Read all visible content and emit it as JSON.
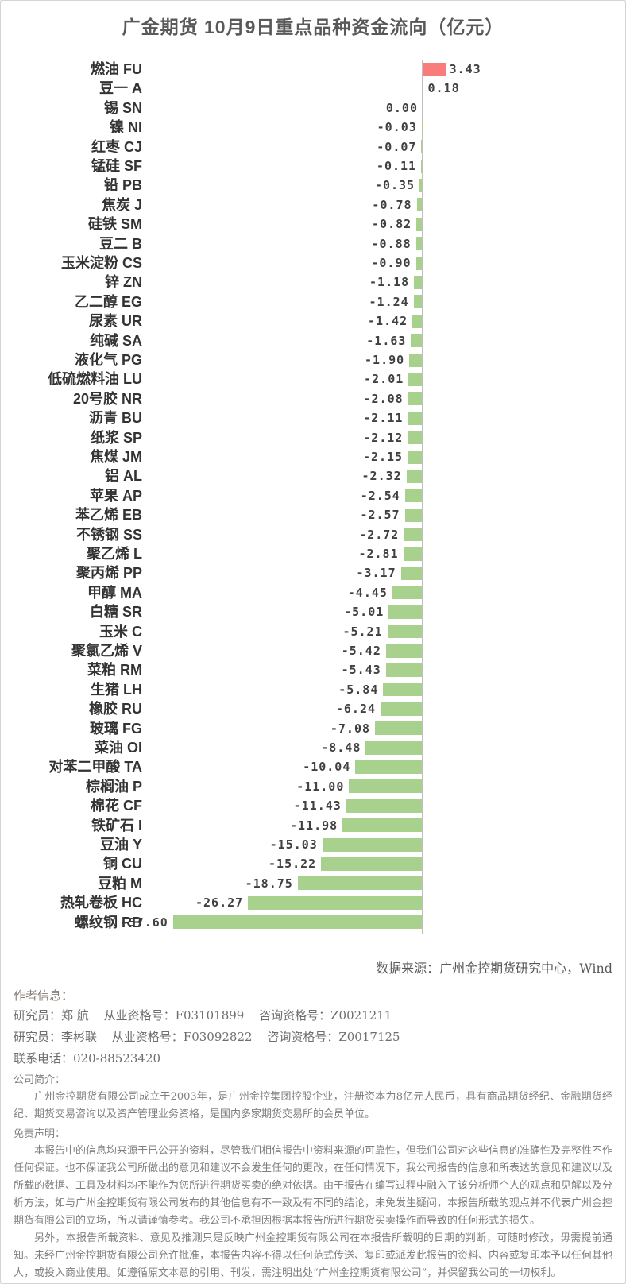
{
  "title": "广金期货 10月9日重点品种资金流向（亿元）",
  "chart_data": {
    "type": "bar",
    "orientation": "horizontal",
    "title": "广金期货 10月9日重点品种资金流向（亿元）",
    "unit": "亿元",
    "value_format": "2-decimals",
    "xlim": [
      -40,
      5
    ],
    "grid": false,
    "legend": "none",
    "positive_color": "#f87c7c",
    "negative_color": "#a9d18e",
    "axis_color": "#bfbfbf",
    "categories": [
      "燃油 FU",
      "豆一 A",
      "锡 SN",
      "镍 NI",
      "红枣 CJ",
      "锰硅 SF",
      "铅 PB",
      "焦炭 J",
      "硅铁 SM",
      "豆二 B",
      "玉米淀粉 CS",
      "锌 ZN",
      "乙二醇 EG",
      "尿素 UR",
      "纯碱 SA",
      "液化气 PG",
      "低硫燃料油 LU",
      "20号胶 NR",
      "沥青 BU",
      "纸浆 SP",
      "焦煤 JM",
      "铝 AL",
      "苹果 AP",
      "苯乙烯 EB",
      "不锈钢 SS",
      "聚乙烯 L",
      "聚丙烯 PP",
      "甲醇 MA",
      "白糖 SR",
      "玉米 C",
      "聚氯乙烯 V",
      "菜粕 RM",
      "生猪 LH",
      "橡胶 RU",
      "玻璃 FG",
      "菜油 OI",
      "对苯二甲酸 TA",
      "棕榈油 P",
      "棉花 CF",
      "铁矿石 I",
      "豆油 Y",
      "铜 CU",
      "豆粕 M",
      "热轧卷板 HC",
      "螺纹钢 RB"
    ],
    "values": [
      3.43,
      0.18,
      0.0,
      -0.03,
      -0.07,
      -0.11,
      -0.35,
      -0.78,
      -0.82,
      -0.88,
      -0.9,
      -1.18,
      -1.24,
      -1.42,
      -1.63,
      -1.9,
      -2.01,
      -2.08,
      -2.11,
      -2.12,
      -2.15,
      -2.32,
      -2.54,
      -2.57,
      -2.72,
      -2.81,
      -3.17,
      -4.45,
      -5.01,
      -5.21,
      -5.42,
      -5.43,
      -5.84,
      -6.24,
      -7.08,
      -8.48,
      -10.04,
      -11.0,
      -11.43,
      -11.98,
      -15.03,
      -15.22,
      -18.75,
      -26.27,
      -37.6
    ]
  },
  "footer": {
    "source": "数据来源：广州金控期货研究中心，Wind",
    "author_heading": "作者信息：",
    "researchers": [
      {
        "role": "研究员：郑 航",
        "practice": "从业资格号：F03101899",
        "consult": "咨询资格号：Z0021211"
      },
      {
        "role": "研究员：李彬联",
        "practice": "从业资格号：F03092822",
        "consult": "咨询资格号：Z0017125"
      }
    ],
    "phone": "联系电话：020-88523420",
    "company_heading": "公司简介：",
    "company_intro": "广州金控期货有限公司成立于2003年，是广州金控集团控股企业，注册资本为8亿元人民币，具有商品期货经纪、金融期货经纪、期货交易咨询以及资产管理业务资格，是国内多家期货交易所的会员单位。",
    "disclaimer_heading": "免责声明：",
    "disclaimer_paragraphs": [
      "本报告中的信息均来源于已公开的资料，尽管我们相信报告中资料来源的可靠性，但我们公司对这些信息的准确性及完整性不作任何保证。也不保证我公司所做出的意见和建议不会发生任何的更改，在任何情况下，我公司报告的信息和所表达的意见和建议以及所载的数据、工具及材料均不能作为您所进行期货买卖的绝对依据。由于报告在编写过程中融入了该分析师个人的观点和见解以及分析方法，如与广州金控期货有限公司发布的其他信息有不一致及有不同的结论，未免发生疑问，本报告所载的观点并不代表广州金控期货有限公司的立场，所以请谨慎参考。我公司不承担因根据本报告所进行期货买卖操作而导致的任何形式的损失。",
      "另外，本报告所载资料、意见及推测只是反映广州金控期货有限公司在本报告所载明的日期的判断，可随时修改，毋需提前通知。未经广州金控期货有限公司允许批准，本报告内容不得以任何范式传送、复印或派发此报告的资料、内容或复印本予以任何其他人，或投入商业使用。如遵循原文本意的引用、刊发，需注明出处“广州金控期货有限公司”，并保留我公司的一切权利。"
    ]
  }
}
